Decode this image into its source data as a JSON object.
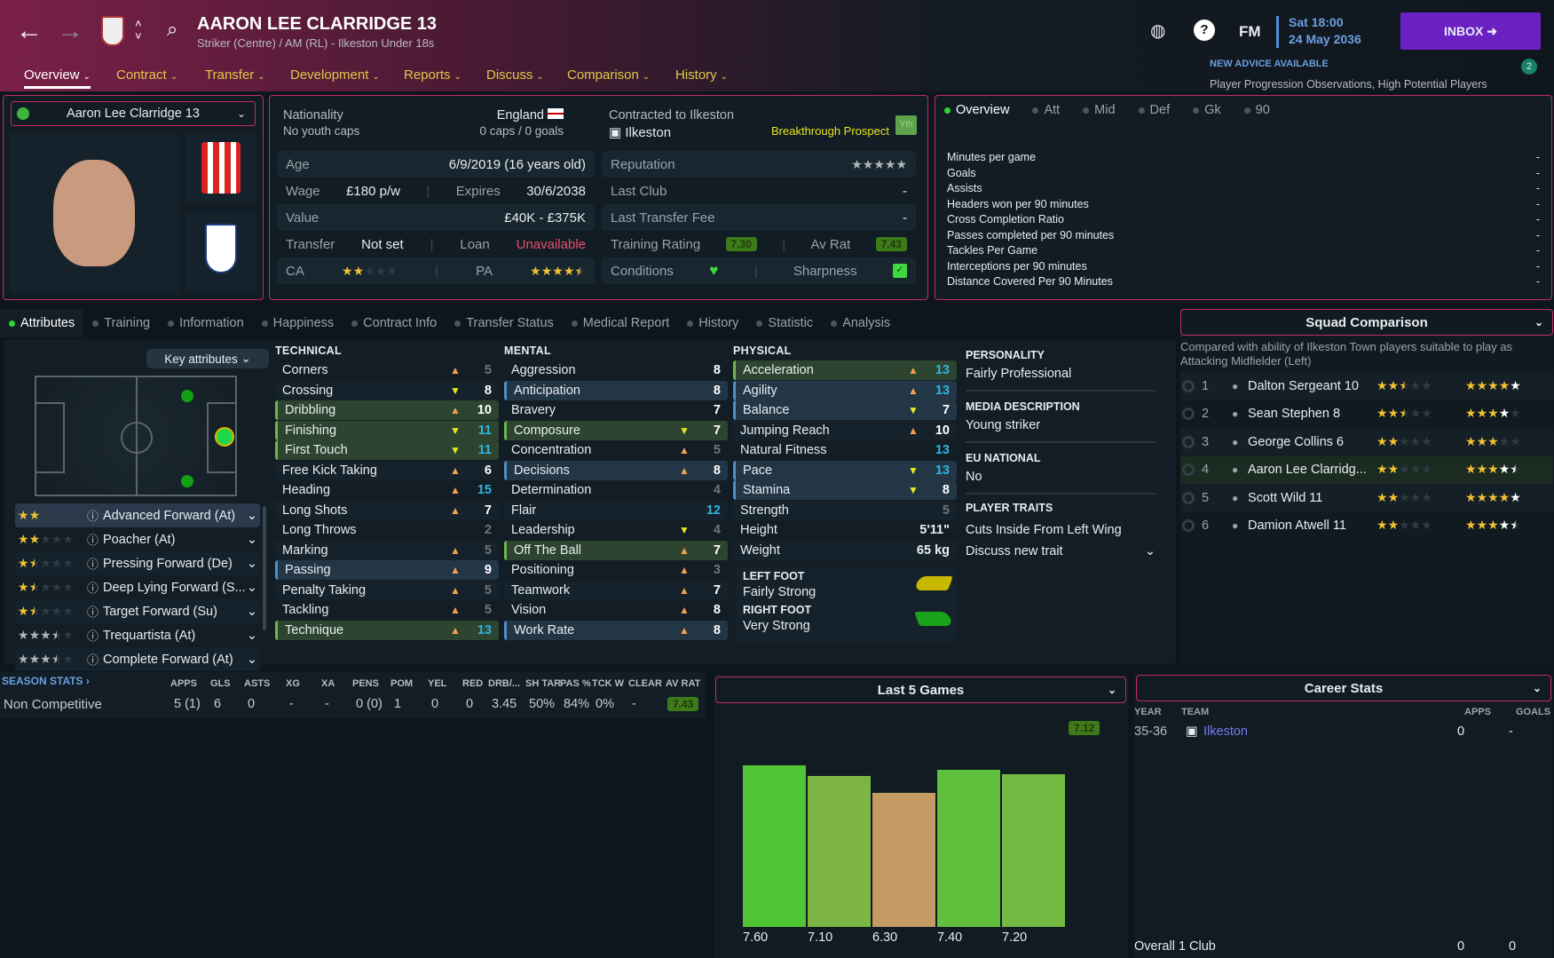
{
  "header": {
    "title": "AARON LEE CLARRIDGE 13",
    "subtitle": "Striker (Centre) / AM (RL) - Ilkeston Under 18s",
    "fm": "FM",
    "time": "Sat 18:00",
    "date": "24 May 2036",
    "inbox": "INBOX",
    "advice_title": "NEW ADVICE AVAILABLE",
    "advice_text": "Player Progression Observations, High Potential Players",
    "advice_count": "2",
    "tabs": [
      "Overview",
      "Contract",
      "Transfer",
      "Development",
      "Reports",
      "Discuss",
      "Comparison",
      "History"
    ]
  },
  "player_select": "Aaron Lee Clarridge 13",
  "info": {
    "nationality_label": "Nationality",
    "nationality": "England",
    "youth_caps": "No youth caps",
    "caps": "0 caps / 0 goals",
    "contracted_label": "Contracted to Ilkeston",
    "club": "Ilkeston",
    "prospect": "Breakthrough Prospect",
    "yth": "Yth",
    "age_label": "Age",
    "age": "6/9/2019 (16 years old)",
    "wage_label": "Wage",
    "wage": "£180 p/w",
    "expires_label": "Expires",
    "expires": "30/6/2038",
    "value_label": "Value",
    "value": "£40K - £375K",
    "transfer_label": "Transfer",
    "transfer": "Not set",
    "loan_label": "Loan",
    "loan": "Unavailable",
    "ca_label": "CA",
    "pa_label": "PA",
    "ca_stars": 2,
    "pa_stars": 4.5,
    "reputation_label": "Reputation",
    "reputation_stars": 5,
    "lastclub_label": "Last Club",
    "lastclub": "-",
    "lastfee_label": "Last Transfer Fee",
    "lastfee": "-",
    "training_label": "Training Rating",
    "training": "7.30",
    "avrat_label": "Av Rat",
    "avrat": "7.43",
    "conditions_label": "Conditions",
    "sharpness_label": "Sharpness"
  },
  "overview_tabs": [
    "Overview",
    "Att",
    "Mid",
    "Def",
    "Gk",
    "90"
  ],
  "overview_stats": [
    [
      "Minutes per game",
      "-"
    ],
    [
      "Goals",
      "-"
    ],
    [
      "Assists",
      "-"
    ],
    [
      "Headers won per 90 minutes",
      "-"
    ],
    [
      "Cross Completion Ratio",
      "-"
    ],
    [
      "Passes completed per 90 minutes",
      "-"
    ],
    [
      "Tackles Per Game",
      "-"
    ],
    [
      "Interceptions per 90 minutes",
      "-"
    ],
    [
      "Distance Covered Per 90 Minutes",
      "-"
    ]
  ],
  "subtabs": [
    "Attributes",
    "Training",
    "Information",
    "Happiness",
    "Contract Info",
    "Transfer Status",
    "Medical Report",
    "History",
    "Statistic",
    "Analysis"
  ],
  "key_attributes": "Key attributes",
  "roles": [
    {
      "name": "Advanced Forward (At)",
      "stars": 2,
      "color": "gold"
    },
    {
      "name": "Poacher (At)",
      "stars": 2,
      "color": "gold"
    },
    {
      "name": "Pressing Forward (De)",
      "stars": 1.5,
      "color": "gold"
    },
    {
      "name": "Deep Lying Forward (S...",
      "stars": 1.5,
      "color": "gold"
    },
    {
      "name": "Target Forward (Su)",
      "stars": 1.5,
      "color": "gold"
    },
    {
      "name": "Trequartista (At)",
      "stars": 3.5,
      "color": "grey"
    },
    {
      "name": "Complete Forward (At)",
      "stars": 3.5,
      "color": "grey"
    }
  ],
  "technical": {
    "title": "TECHNICAL",
    "items": [
      [
        "Corners",
        5,
        "up",
        ""
      ],
      [
        "Crossing",
        8,
        "yel",
        ""
      ],
      [
        "Dribbling",
        10,
        "up",
        "green"
      ],
      [
        "Finishing",
        11,
        "yel",
        "green"
      ],
      [
        "First Touch",
        11,
        "yel",
        "green"
      ],
      [
        "Free Kick Taking",
        6,
        "up",
        ""
      ],
      [
        "Heading",
        15,
        "up",
        ""
      ],
      [
        "Long Shots",
        7,
        "up",
        ""
      ],
      [
        "Long Throws",
        2,
        "",
        ""
      ],
      [
        "Marking",
        5,
        "up",
        ""
      ],
      [
        "Passing",
        9,
        "up",
        "blue"
      ],
      [
        "Penalty Taking",
        5,
        "up",
        ""
      ],
      [
        "Tackling",
        5,
        "up",
        ""
      ],
      [
        "Technique",
        13,
        "up",
        "green"
      ]
    ]
  },
  "mental": {
    "title": "MENTAL",
    "items": [
      [
        "Aggression",
        8,
        "",
        ""
      ],
      [
        "Anticipation",
        8,
        "",
        "blue"
      ],
      [
        "Bravery",
        7,
        "",
        ""
      ],
      [
        "Composure",
        7,
        "yel",
        "green"
      ],
      [
        "Concentration",
        5,
        "up",
        ""
      ],
      [
        "Decisions",
        8,
        "up",
        "blue"
      ],
      [
        "Determination",
        4,
        "",
        ""
      ],
      [
        "Flair",
        12,
        "",
        ""
      ],
      [
        "Leadership",
        4,
        "yel",
        ""
      ],
      [
        "Off The Ball",
        7,
        "up",
        "green"
      ],
      [
        "Positioning",
        3,
        "up",
        ""
      ],
      [
        "Teamwork",
        7,
        "up",
        ""
      ],
      [
        "Vision",
        8,
        "up",
        ""
      ],
      [
        "Work Rate",
        8,
        "up",
        "blue"
      ]
    ]
  },
  "physical": {
    "title": "PHYSICAL",
    "items": [
      [
        "Acceleration",
        13,
        "up",
        "green"
      ],
      [
        "Agility",
        13,
        "up",
        "blue"
      ],
      [
        "Balance",
        7,
        "yel",
        "blue"
      ],
      [
        "Jumping Reach",
        10,
        "up",
        ""
      ],
      [
        "Natural Fitness",
        13,
        "",
        ""
      ],
      [
        "Pace",
        13,
        "yel",
        "blue"
      ],
      [
        "Stamina",
        8,
        "yel",
        "blue"
      ],
      [
        "Strength",
        5,
        "",
        ""
      ]
    ],
    "height_label": "Height",
    "height": "5'11\"",
    "weight_label": "Weight",
    "weight": "65 kg",
    "left_foot_label": "LEFT FOOT",
    "left_foot": "Fairly Strong",
    "right_foot_label": "RIGHT FOOT",
    "right_foot": "Very Strong"
  },
  "profile": {
    "personality_label": "PERSONALITY",
    "personality": "Fairly Professional",
    "media_label": "MEDIA DESCRIPTION",
    "media": "Young striker",
    "eu_label": "EU NATIONAL",
    "eu": "No",
    "traits_label": "PLAYER TRAITS",
    "trait": "Cuts Inside From Left Wing",
    "discuss": "Discuss new trait"
  },
  "squad": {
    "title": "Squad Comparison",
    "desc": "Compared with ability of Ilkeston Town players suitable to play as Attacking Midfielder (Left)",
    "players": [
      {
        "rank": "1",
        "name": "Dalton Sergeant 10",
        "ca": 2.5,
        "pa_gold": 4,
        "pa": 5
      },
      {
        "rank": "2",
        "name": "Sean Stephen 8",
        "ca": 2.5,
        "pa_gold": 3,
        "pa": 4
      },
      {
        "rank": "3",
        "name": "George Collins 6",
        "ca": 2,
        "pa_gold": 3,
        "pa": 3
      },
      {
        "rank": "4",
        "name": "Aaron Lee Clarridg...",
        "ca": 2,
        "pa_gold": 3,
        "pa": 4.5
      },
      {
        "rank": "5",
        "name": "Scott Wild 11",
        "ca": 2,
        "pa_gold": 4,
        "pa": 5
      },
      {
        "rank": "6",
        "name": "Damion Atwell 11",
        "ca": 2,
        "pa_gold": 3,
        "pa": 4.5
      }
    ]
  },
  "season": {
    "title": "SEASON STATS",
    "headers": [
      "APPS",
      "GLS",
      "ASTS",
      "XG",
      "XA",
      "PENS",
      "POM",
      "YEL",
      "RED",
      "DRB/...",
      "SH TAR",
      "PAS %",
      "TCK W",
      "CLEAR",
      "AV RAT"
    ],
    "row_label": "Non Competitive",
    "values": [
      "5 (1)",
      "6",
      "0",
      "-",
      "-",
      "0 (0)",
      "1",
      "0",
      "0",
      "3.45",
      "50%",
      "84%",
      "0%",
      "-",
      "7.43"
    ]
  },
  "chart_data": {
    "type": "bar",
    "title": "Last 5 Games",
    "average": "7.12",
    "values": [
      7.6,
      7.1,
      6.3,
      7.4,
      7.2
    ],
    "labels": [
      "7.60",
      "7.10",
      "6.30",
      "7.40",
      "7.20"
    ],
    "colors": [
      "#50c535",
      "#7db545",
      "#c39b63",
      "#60bf3c",
      "#74b942"
    ],
    "ylim": [
      0,
      10
    ]
  },
  "career": {
    "title": "Career Stats",
    "headers": [
      "YEAR",
      "TEAM",
      "APPS",
      "GOALS"
    ],
    "rows": [
      [
        "35-36",
        "Ilkeston",
        "0",
        "-"
      ]
    ],
    "total": [
      "Overall 1 Club",
      "0",
      "0"
    ]
  }
}
